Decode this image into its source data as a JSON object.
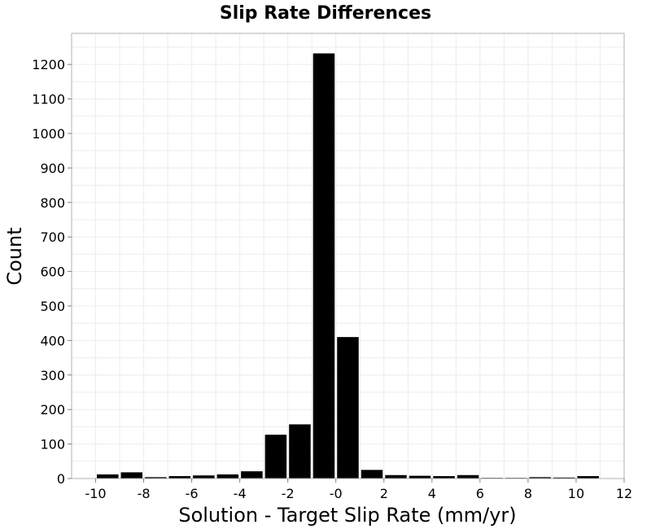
{
  "chart_data": {
    "type": "bar",
    "title": "Slip Rate Differences",
    "xlabel": "Solution - Target Slip Rate (mm/yr)",
    "ylabel": "Count",
    "xlim": [
      -11,
      12
    ],
    "ylim": [
      0,
      1290
    ],
    "xticks": [
      -10,
      -8,
      -6,
      -4,
      -2,
      0,
      2,
      4,
      6,
      8,
      10,
      12
    ],
    "xtick_labels": [
      "-10",
      "-8",
      "-6",
      "-4",
      "-2",
      "-0",
      "2",
      "4",
      "6",
      "8",
      "10",
      "12"
    ],
    "yticks": [
      0,
      100,
      200,
      300,
      400,
      500,
      600,
      700,
      800,
      900,
      1000,
      1100,
      1200
    ],
    "bin_width": 1,
    "bars": [
      {
        "x": -9.5,
        "count": 12
      },
      {
        "x": -8.5,
        "count": 18
      },
      {
        "x": -7.5,
        "count": 4
      },
      {
        "x": -6.5,
        "count": 7
      },
      {
        "x": -5.5,
        "count": 9
      },
      {
        "x": -4.5,
        "count": 12
      },
      {
        "x": -3.5,
        "count": 21
      },
      {
        "x": -2.5,
        "count": 127
      },
      {
        "x": -1.5,
        "count": 157
      },
      {
        "x": -0.5,
        "count": 1232
      },
      {
        "x": 0.5,
        "count": 410
      },
      {
        "x": 1.5,
        "count": 25
      },
      {
        "x": 2.5,
        "count": 10
      },
      {
        "x": 3.5,
        "count": 8
      },
      {
        "x": 4.5,
        "count": 7
      },
      {
        "x": 5.5,
        "count": 10
      },
      {
        "x": 6.5,
        "count": 2
      },
      {
        "x": 7.5,
        "count": 2
      },
      {
        "x": 8.5,
        "count": 4
      },
      {
        "x": 9.5,
        "count": 3
      },
      {
        "x": 10.5,
        "count": 7
      }
    ],
    "grid": true,
    "legend": "none",
    "bar_color": "#000000"
  }
}
